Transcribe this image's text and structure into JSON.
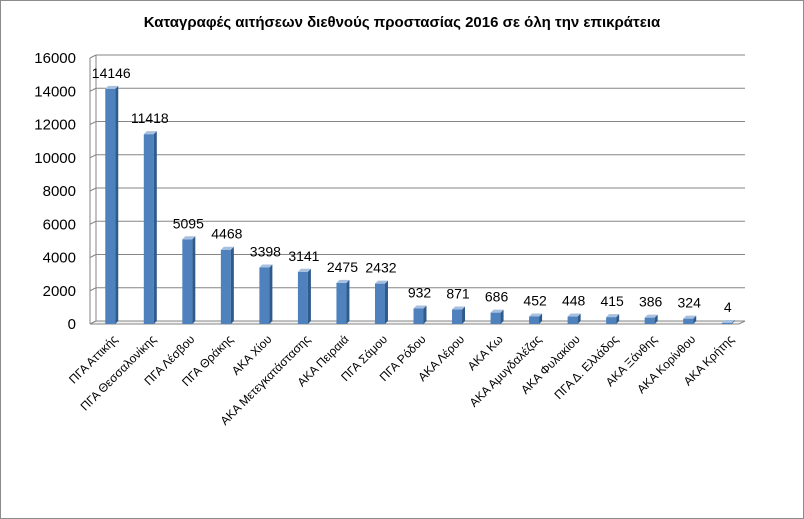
{
  "chart_data": {
    "type": "bar",
    "title": "Καταγραφές αιτήσεων διεθνούς προστασίας 2016 σε όλη την επικράτεια",
    "categories": [
      "ΠΓΑ Αττικής",
      "ΠΓΑ Θεσσαλονίκης",
      "ΠΓΑ Λέσβου",
      "ΠΓΑ Θράκης",
      "ΑΚΑ Χίου",
      "ΑΚΑ Μετεγκατάστασης",
      "ΑΚΑ Πειραιά",
      "ΠΓΑ Σάμου",
      "ΠΓΑ Ρόδου",
      "ΑΚΑ Λέρου",
      "ΑΚΑ Κω",
      "ΑΚΑ Αμυγδαλέζας",
      "ΑΚΑ Φυλακίου",
      "ΠΓΑ Δ. Ελλάδος",
      "ΑΚΑ Ξάνθης",
      "ΑΚΑ Κορίνθου",
      "ΑΚΑ Κρήτης"
    ],
    "values": [
      14146,
      11418,
      5095,
      4468,
      3398,
      3141,
      2475,
      2432,
      932,
      871,
      686,
      452,
      448,
      415,
      386,
      324,
      4
    ],
    "ylim": [
      0,
      16000
    ],
    "yticks": [
      0,
      2000,
      4000,
      6000,
      8000,
      10000,
      12000,
      14000,
      16000
    ],
    "grid": true,
    "legend": "none",
    "bar_color": "#4f81bd",
    "xlabel": "",
    "ylabel": ""
  }
}
